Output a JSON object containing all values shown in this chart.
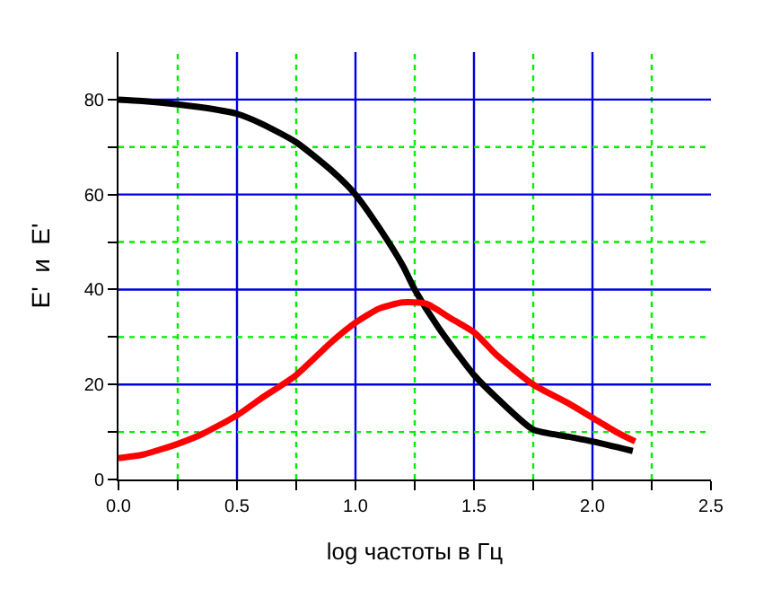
{
  "chart_data": {
    "type": "line",
    "xlabel": "log частоты в Гц",
    "ylabel": "E'  и  E'",
    "xlim": [
      0,
      2.5
    ],
    "ylim": [
      0,
      90
    ],
    "xticks": [
      {
        "value": 0,
        "label": "0.0"
      },
      {
        "value": 0.25,
        "label": null
      },
      {
        "value": 0.5,
        "label": "0.5"
      },
      {
        "value": 0.75,
        "label": null
      },
      {
        "value": 1,
        "label": "1.0"
      },
      {
        "value": 1.25,
        "label": null
      },
      {
        "value": 1.5,
        "label": "1.5"
      },
      {
        "value": 1.75,
        "label": null
      },
      {
        "value": 2,
        "label": "2.0"
      },
      {
        "value": 2.25,
        "label": null
      },
      {
        "value": 2.5,
        "label": "2.5"
      }
    ],
    "yticks": [
      0,
      {
        "value": 10,
        "label": null
      },
      20,
      {
        "value": 30,
        "label": null
      },
      40,
      {
        "value": 50,
        "label": null
      },
      60,
      {
        "value": 70,
        "label": null
      },
      80
    ],
    "grid": true,
    "marker": "none",
    "line_style": "solid",
    "series": [
      {
        "color": "#000000",
        "x": [
          0,
          0.1,
          0.25,
          0.4,
          0.5,
          0.6,
          0.75,
          0.9,
          1.0,
          1.1,
          1.2,
          1.25,
          1.35,
          1.5,
          1.6,
          1.75,
          1.9,
          2.0,
          2.17
        ],
        "values": [
          80,
          79.7,
          79,
          78,
          77,
          75,
          71,
          65,
          60,
          53,
          45,
          40,
          32,
          22,
          17,
          10.5,
          9,
          8,
          6
        ]
      },
      {
        "color": "#ff0000",
        "x": [
          0,
          0.1,
          0.25,
          0.35,
          0.5,
          0.6,
          0.75,
          0.9,
          1.0,
          1.1,
          1.2,
          1.3,
          1.4,
          1.5,
          1.6,
          1.75,
          1.9,
          2.0,
          2.1,
          2.18
        ],
        "values": [
          4.5,
          5.2,
          7.5,
          9.5,
          13.5,
          17,
          22,
          29,
          33,
          36,
          37.3,
          37,
          34,
          31,
          26,
          20,
          16,
          13,
          10,
          8
        ]
      }
    ]
  }
}
